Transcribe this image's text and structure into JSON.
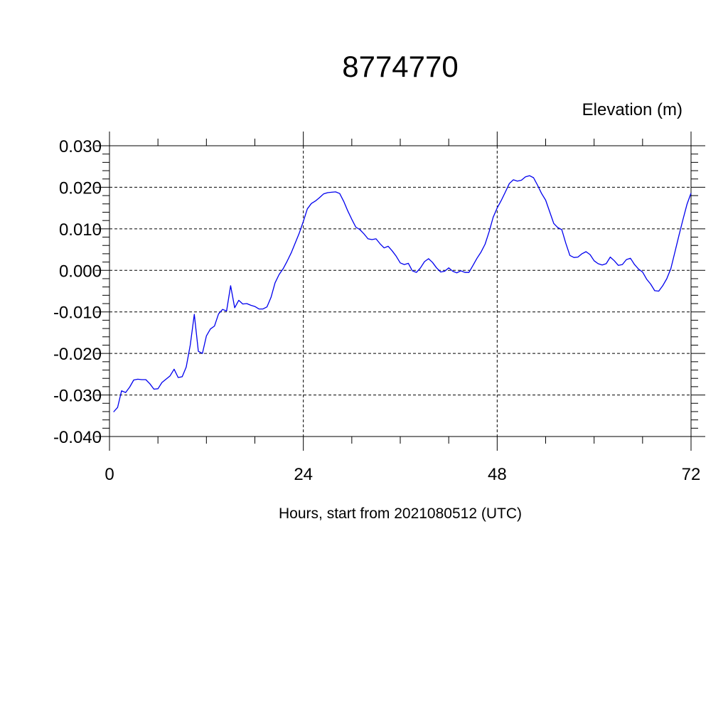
{
  "chart_data": {
    "type": "line",
    "title": "8774770",
    "units_label": "Elevation (m)",
    "xlabel": "Hours, start from 2021080512 (UTC)",
    "ylabel": "",
    "xlim": [
      0,
      72
    ],
    "ylim": [
      -0.04,
      0.03
    ],
    "x_ticks": [
      0,
      24,
      48,
      72
    ],
    "x_tick_labels": [
      "0",
      "24",
      "48",
      "72"
    ],
    "y_ticks": [
      0.03,
      0.02,
      0.01,
      0.0,
      -0.01,
      -0.02,
      -0.03,
      -0.04
    ],
    "y_tick_labels": [
      "0.030",
      "0.020",
      "0.010",
      "0.000",
      "-0.010",
      "-0.020",
      "-0.030",
      "-0.040"
    ],
    "grid": true,
    "grid_style": "dashed",
    "line_color": "#0000ee",
    "series": [
      {
        "x": [
          0.5,
          1.0,
          1.5,
          2.0,
          2.5,
          3.0,
          3.5,
          4.0,
          4.5,
          5.0,
          5.5,
          6.0,
          6.5,
          7.0,
          7.5,
          8.0,
          8.5,
          9.0,
          9.5,
          10.0,
          10.5,
          11.0,
          11.5,
          12.0,
          12.5,
          13.0,
          13.5,
          14.0,
          14.5,
          15.0,
          15.5,
          16.0,
          16.5,
          17.0,
          17.5,
          18.0,
          18.5,
          19.0,
          19.5,
          20.0,
          20.5,
          21.0,
          21.5,
          22.0,
          22.5,
          23.0,
          23.5,
          24.0,
          24.5,
          25.0,
          25.5,
          26.0,
          26.5,
          27.0,
          27.5,
          28.0,
          28.5,
          29.0,
          29.5,
          30.0,
          30.5,
          31.0,
          31.5,
          32.0,
          32.5,
          33.0,
          33.5,
          34.0,
          34.5,
          35.0,
          35.5,
          36.0,
          36.5,
          37.0,
          37.5,
          38.0,
          38.5,
          39.0,
          39.5,
          40.0,
          40.5,
          41.0,
          41.5,
          42.0,
          42.5,
          43.0,
          43.5,
          44.0,
          44.5,
          45.0,
          45.5,
          46.0,
          46.5,
          47.0,
          47.5,
          48.0,
          48.5,
          49.0,
          49.5,
          50.0,
          50.5,
          51.0,
          51.5,
          52.0,
          52.5,
          53.0,
          53.5,
          54.0,
          54.5,
          55.0,
          55.5,
          56.0,
          56.5,
          57.0,
          57.5,
          58.0,
          58.5,
          59.0,
          59.5,
          60.0,
          60.5,
          61.0,
          61.5,
          62.0,
          62.5,
          63.0,
          63.5,
          64.0,
          64.5,
          65.0,
          65.5,
          66.0,
          66.5,
          67.0,
          67.5,
          68.0,
          68.5,
          69.0,
          69.5,
          70.0,
          70.5,
          71.0,
          71.5,
          72.0
        ],
        "y": [
          -0.0341,
          -0.033,
          -0.029,
          -0.0294,
          -0.0281,
          -0.0264,
          -0.0262,
          -0.0263,
          -0.0263,
          -0.0273,
          -0.0286,
          -0.0285,
          -0.027,
          -0.0262,
          -0.0254,
          -0.0238,
          -0.0258,
          -0.0256,
          -0.0233,
          -0.018,
          -0.0106,
          -0.0195,
          -0.02,
          -0.0158,
          -0.0141,
          -0.0134,
          -0.0105,
          -0.0094,
          -0.0098,
          -0.0037,
          -0.009,
          -0.0072,
          -0.0081,
          -0.008,
          -0.0084,
          -0.0087,
          -0.0093,
          -0.0093,
          -0.0088,
          -0.0065,
          -0.003,
          -0.001,
          0.0004,
          0.0022,
          0.0042,
          0.0066,
          0.009,
          0.0118,
          0.0148,
          0.0161,
          0.0167,
          0.0175,
          0.0184,
          0.0187,
          0.0188,
          0.0189,
          0.0185,
          0.0166,
          0.0143,
          0.0123,
          0.0104,
          0.0098,
          0.0088,
          0.0076,
          0.0074,
          0.0076,
          0.0064,
          0.0054,
          0.0058,
          0.0047,
          0.0034,
          0.0018,
          0.0014,
          0.0017,
          -0.0001,
          -0.0005,
          0.0006,
          0.0021,
          0.0028,
          0.0019,
          0.0006,
          -0.0004,
          -0.0002,
          0.0006,
          -0.0002,
          -0.0006,
          -0.0001,
          -0.0005,
          -0.0005,
          0.0012,
          0.0029,
          0.0044,
          0.0063,
          0.0093,
          0.0128,
          0.015,
          0.0168,
          0.0188,
          0.0209,
          0.0218,
          0.0215,
          0.0217,
          0.0225,
          0.0228,
          0.0223,
          0.0205,
          0.0185,
          0.0169,
          0.0141,
          0.0113,
          0.0103,
          0.0098,
          0.0065,
          0.0036,
          0.0031,
          0.0032,
          0.004,
          0.0045,
          0.0038,
          0.0023,
          0.0016,
          0.0013,
          0.0016,
          0.0032,
          0.0023,
          0.0012,
          0.0014,
          0.0026,
          0.0029,
          0.0014,
          0.0003,
          -0.0004,
          -0.0021,
          -0.0033,
          -0.0049,
          -0.005,
          -0.0037,
          -0.002,
          0.0004,
          0.0044,
          0.0084,
          0.0122,
          0.0159,
          0.0186
        ]
      }
    ]
  }
}
